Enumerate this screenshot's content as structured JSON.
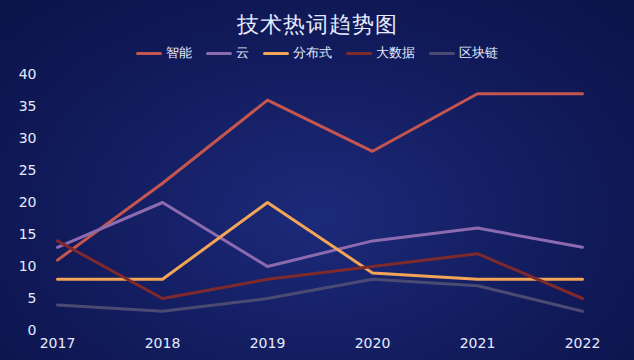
{
  "chart_data": {
    "type": "line",
    "title": "技术热词趋势图",
    "categories": [
      "2017",
      "2018",
      "2019",
      "2020",
      "2021",
      "2022"
    ],
    "series": [
      {
        "name": "智能",
        "color": "#c4554f",
        "values": [
          11,
          23,
          36,
          28,
          37,
          37
        ]
      },
      {
        "name": "云",
        "color": "#8c6ab0",
        "values": [
          13,
          20,
          10,
          14,
          16,
          13
        ]
      },
      {
        "name": "分布式",
        "color": "#f3a456",
        "values": [
          8,
          8,
          20,
          9,
          8,
          8
        ]
      },
      {
        "name": "大数据",
        "color": "#7e2a2c",
        "values": [
          14,
          5,
          8,
          10,
          12,
          5
        ]
      },
      {
        "name": "区块链",
        "color": "#4b4a72",
        "values": [
          4,
          3,
          5,
          8,
          7,
          3
        ]
      }
    ],
    "ylim": [
      0,
      40
    ],
    "yticks": [
      0,
      5,
      10,
      15,
      20,
      25,
      30,
      35,
      40
    ],
    "grid": false,
    "legend": "top"
  }
}
